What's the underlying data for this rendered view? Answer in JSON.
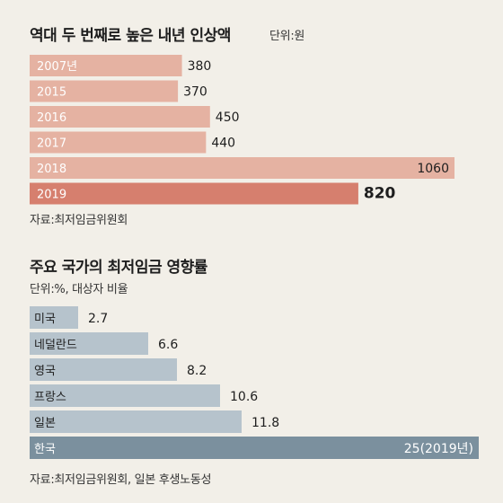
{
  "chart_data": [
    {
      "type": "bar",
      "orientation": "horizontal",
      "title": "역대 두 번째로 높은 내년 인상액",
      "unit_label": "단위:원",
      "categories": [
        "2007년",
        "2015",
        "2016",
        "2017",
        "2018",
        "2019"
      ],
      "values": [
        380,
        370,
        450,
        440,
        1060,
        820
      ],
      "value_labels": [
        "380",
        "370",
        "450",
        "440",
        "1060",
        "820"
      ],
      "highlight_index": 5,
      "xlim": [
        0,
        1100
      ],
      "grid": false,
      "colors": {
        "bar": "#e5b2a2",
        "highlight": "#d67f6e",
        "label_on_bar": "#ffffff"
      },
      "source": "자료:최저임금위원회"
    },
    {
      "type": "bar",
      "orientation": "horizontal",
      "title": "주요 국가의 최저임금 영향률",
      "unit_label": "단위:%, 대상자 비율",
      "categories": [
        "미국",
        "네덜란드",
        "영국",
        "프랑스",
        "일본",
        "한국"
      ],
      "values": [
        2.7,
        6.6,
        8.2,
        10.6,
        11.8,
        25
      ],
      "value_labels": [
        "2.7",
        "6.6",
        "8.2",
        "10.6",
        "11.8",
        "25(2019년)"
      ],
      "highlight_index": 5,
      "xlim": [
        0,
        25
      ],
      "grid": false,
      "colors": {
        "bar": "#b6c3cc",
        "highlight": "#7b909e",
        "label_on_bar": "#1e1e1e",
        "label_on_highlight": "#ffffff"
      },
      "source": "자료:최저임금위원회, 일본 후생노동성"
    }
  ]
}
